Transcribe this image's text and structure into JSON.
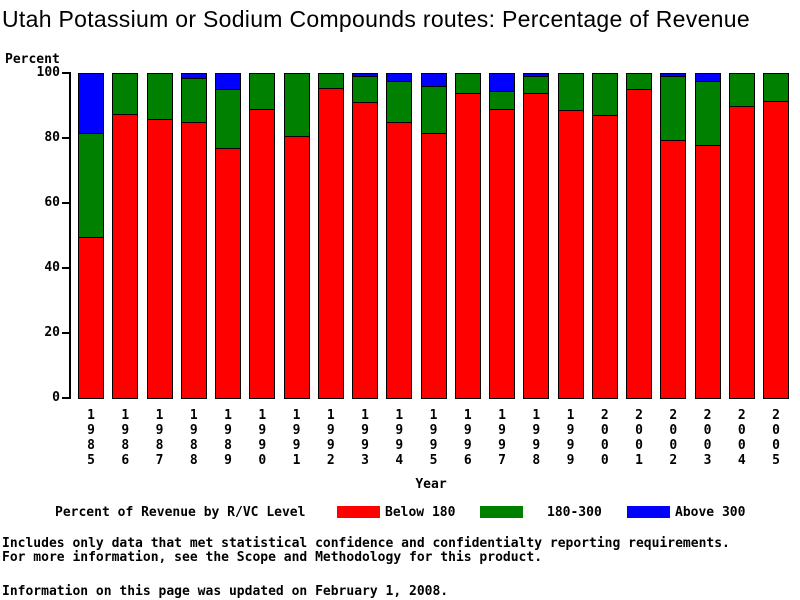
{
  "chart_data": {
    "type": "bar",
    "stacked": true,
    "title": "Utah Potassium or Sodium Compounds routes: Percentage of Revenue",
    "ylabel": "Percent",
    "xlabel": "Year",
    "ylim": [
      0,
      100
    ],
    "yticks": [
      0,
      20,
      40,
      60,
      80,
      100
    ],
    "grid": false,
    "legend_position": "bottom",
    "legend_title": "Percent of Revenue by R/VC Level",
    "categories": [
      "1985",
      "1986",
      "1987",
      "1988",
      "1989",
      "1990",
      "1991",
      "1992",
      "1993",
      "1994",
      "1995",
      "1996",
      "1997",
      "1998",
      "1999",
      "2000",
      "2001",
      "2002",
      "2003",
      "2004",
      "2005"
    ],
    "series": [
      {
        "name": "Below 180",
        "color": "#ff0000",
        "values": [
          49.5,
          87.5,
          86,
          85,
          77,
          89,
          80.5,
          95.5,
          91,
          85,
          81.5,
          94,
          89,
          94,
          88.5,
          87,
          95,
          79.5,
          78,
          90,
          91.5
        ]
      },
      {
        "name": "180-300",
        "color": "#008000",
        "values": [
          32,
          12.5,
          14,
          13.5,
          18,
          11,
          19.5,
          4.5,
          8,
          12.5,
          14.5,
          6,
          5.5,
          5,
          11.5,
          13,
          5,
          19.5,
          19.5,
          10,
          8.5
        ]
      },
      {
        "name": "Above 300",
        "color": "#0000ff",
        "values": [
          18.5,
          0,
          0,
          1.5,
          5,
          0,
          0,
          0,
          1,
          2.5,
          4,
          0,
          5.5,
          1,
          0,
          0,
          0,
          1,
          2.5,
          0,
          0
        ]
      }
    ]
  },
  "footnotes": {
    "line1": "Includes only data that met statistical confidence and confidentialty reporting requirements.",
    "line2": "For more information, see the Scope and Methodology for this product."
  },
  "footer": {
    "updated": "Information on this page was updated on February 1, 2008."
  },
  "colors": {
    "axis": "#000000",
    "background": "#ffffff",
    "text": "#000000"
  }
}
